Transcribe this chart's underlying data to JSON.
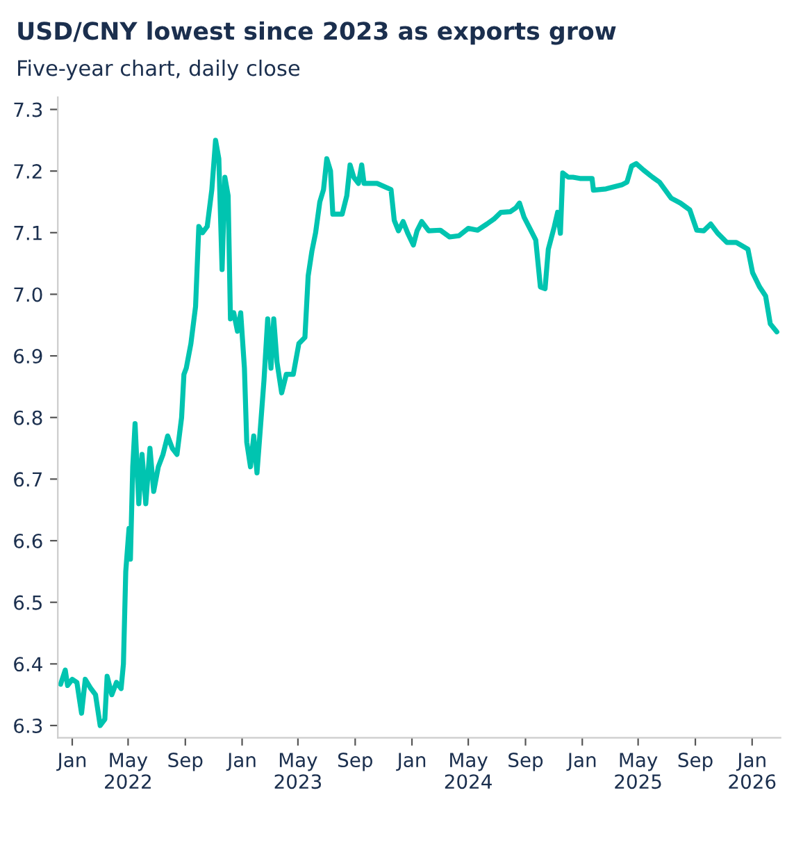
{
  "chart_data": {
    "type": "line",
    "title": "USD/CNY lowest since 2023 as exports grow",
    "subtitle": "Five-year chart, daily close",
    "x": [
      "2021-12-07",
      "2021-12-17",
      "2021-12-22",
      "2022-01-01",
      "2022-01-11",
      "2022-01-21",
      "2022-01-29",
      "2022-02-10",
      "2022-02-20",
      "2022-03-02",
      "2022-03-12",
      "2022-03-17",
      "2022-03-27",
      "2022-04-06",
      "2022-04-16",
      "2022-04-21",
      "2022-04-26",
      "2022-05-03",
      "2022-05-06",
      "2022-05-11",
      "2022-05-16",
      "2022-05-24",
      "2022-05-31",
      "2022-06-08",
      "2022-06-17",
      "2022-06-25",
      "2022-07-05",
      "2022-07-15",
      "2022-07-25",
      "2022-08-04",
      "2022-08-14",
      "2022-08-24",
      "2022-08-29",
      "2022-09-03",
      "2022-09-13",
      "2022-09-23",
      "2022-09-30",
      "2022-10-08",
      "2022-10-18",
      "2022-10-28",
      "2022-11-05",
      "2022-11-12",
      "2022-11-19",
      "2022-11-25",
      "2022-12-02",
      "2022-12-07",
      "2022-12-14",
      "2022-12-22",
      "2022-12-29",
      "2023-01-06",
      "2023-01-11",
      "2023-01-19",
      "2023-01-26",
      "2023-02-02",
      "2023-02-10",
      "2023-02-17",
      "2023-02-25",
      "2023-03-04",
      "2023-03-10",
      "2023-03-17",
      "2023-03-27",
      "2023-04-06",
      "2023-04-21",
      "2023-05-03",
      "2023-05-16",
      "2023-05-23",
      "2023-05-31",
      "2023-06-08",
      "2023-06-17",
      "2023-06-25",
      "2023-07-02",
      "2023-07-10",
      "2023-07-15",
      "2023-07-25",
      "2023-08-04",
      "2023-08-14",
      "2023-08-21",
      "2023-08-29",
      "2023-09-08",
      "2023-09-15",
      "2023-09-20",
      "2023-10-03",
      "2023-10-18",
      "2023-11-17",
      "2023-11-24",
      "2023-12-03",
      "2023-12-13",
      "2023-12-23",
      "2024-01-04",
      "2024-01-12",
      "2024-01-22",
      "2024-02-06",
      "2024-03-02",
      "2024-03-22",
      "2024-04-11",
      "2024-05-01",
      "2024-05-21",
      "2024-06-10",
      "2024-06-25",
      "2024-07-10",
      "2024-07-30",
      "2024-08-11",
      "2024-08-19",
      "2024-08-29",
      "2024-09-13",
      "2024-09-23",
      "2024-10-03",
      "2024-10-13",
      "2024-10-20",
      "2024-11-02",
      "2024-11-09",
      "2024-11-15",
      "2024-11-20",
      "2024-12-02",
      "2024-12-12",
      "2024-12-27",
      "2025-01-22",
      "2025-01-25",
      "2025-02-21",
      "2025-03-28",
      "2025-04-07",
      "2025-04-17",
      "2025-04-27",
      "2025-05-12",
      "2025-06-01",
      "2025-06-16",
      "2025-07-11",
      "2025-07-31",
      "2025-08-20",
      "2025-09-04",
      "2025-09-19",
      "2025-10-04",
      "2025-10-19",
      "2025-11-08",
      "2025-11-28",
      "2025-12-23",
      "2026-01-02",
      "2026-01-17",
      "2026-01-30",
      "2026-02-09",
      "2026-02-23"
    ],
    "series": [
      {
        "color": "#00c4b0",
        "values": [
          6.367,
          6.39,
          6.365,
          6.375,
          6.37,
          6.32,
          6.375,
          6.36,
          6.35,
          6.3,
          6.31,
          6.38,
          6.35,
          6.37,
          6.36,
          6.4,
          6.55,
          6.62,
          6.57,
          6.72,
          6.79,
          6.66,
          6.74,
          6.66,
          6.75,
          6.68,
          6.72,
          6.74,
          6.77,
          6.75,
          6.74,
          6.8,
          6.87,
          6.88,
          6.92,
          6.98,
          7.11,
          7.1,
          7.11,
          7.17,
          7.25,
          7.22,
          7.04,
          7.19,
          7.16,
          6.96,
          6.97,
          6.94,
          6.97,
          6.88,
          6.76,
          6.72,
          6.77,
          6.71,
          6.79,
          6.86,
          6.96,
          6.88,
          6.96,
          6.89,
          6.84,
          6.87,
          6.87,
          6.92,
          6.93,
          7.03,
          7.07,
          7.1,
          7.15,
          7.17,
          7.22,
          7.2,
          7.13,
          7.13,
          7.13,
          7.16,
          7.21,
          7.19,
          7.18,
          7.21,
          7.18,
          7.18,
          7.18,
          7.17,
          7.12,
          7.103,
          7.118,
          7.099,
          7.08,
          7.103,
          7.118,
          7.103,
          7.104,
          7.093,
          7.095,
          7.107,
          7.104,
          7.114,
          7.122,
          7.133,
          7.134,
          7.14,
          7.148,
          7.125,
          7.103,
          7.088,
          7.012,
          7.009,
          7.073,
          7.11,
          7.133,
          7.099,
          7.197,
          7.19,
          7.19,
          7.188,
          7.188,
          7.169,
          7.171,
          7.178,
          7.182,
          7.208,
          7.212,
          7.202,
          7.19,
          7.182,
          7.156,
          7.148,
          7.137,
          7.104,
          7.103,
          7.114,
          7.099,
          7.084,
          7.084,
          7.073,
          7.035,
          7.012,
          6.997,
          6.952,
          6.939
        ]
      }
    ],
    "xlim": [
      "2021-12-01",
      "2026-03-03"
    ],
    "xticks": [
      {
        "value": "2022-01-01",
        "label": "Jan"
      },
      {
        "value": "2022-05-01",
        "label": "May\n2022"
      },
      {
        "value": "2022-09-01",
        "label": "Sep"
      },
      {
        "value": "2023-01-01",
        "label": "Jan"
      },
      {
        "value": "2023-05-01",
        "label": "May\n2023"
      },
      {
        "value": "2023-09-01",
        "label": "Sep"
      },
      {
        "value": "2024-01-01",
        "label": "Jan"
      },
      {
        "value": "2024-05-01",
        "label": "May\n2024"
      },
      {
        "value": "2024-09-01",
        "label": "Sep"
      },
      {
        "value": "2025-01-01",
        "label": "Jan"
      },
      {
        "value": "2025-05-01",
        "label": "May\n2025"
      },
      {
        "value": "2025-09-01",
        "label": "Sep"
      },
      {
        "value": "2026-01-01",
        "label": "Jan\n2026"
      }
    ],
    "ylim": [
      6.28,
      7.32
    ],
    "yticks": [
      6.3,
      6.4,
      6.5,
      6.6,
      6.7,
      6.8,
      6.9,
      {
        "value": 7.0,
        "label": "7.0"
      },
      7.1,
      7.2,
      7.3
    ],
    "grid": false,
    "marker": "none",
    "line_style": "solid"
  }
}
